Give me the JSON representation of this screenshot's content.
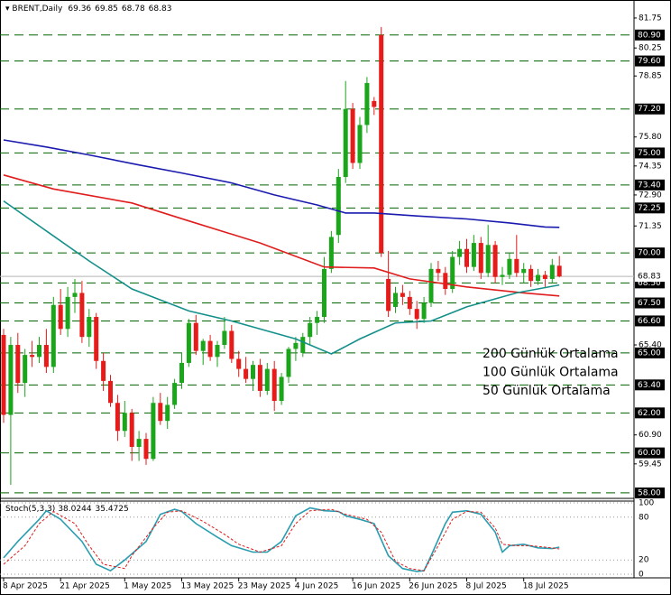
{
  "chart_data": [
    {
      "type": "candlestick",
      "title": "BRENT,Daily",
      "categories": [
        "8 Apr 2025",
        null,
        null,
        null,
        null,
        null,
        null,
        null,
        "21 Apr 2025",
        null,
        null,
        null,
        null,
        null,
        null,
        null,
        null,
        "1 May 2025",
        null,
        null,
        null,
        null,
        null,
        null,
        null,
        "13 May 2025",
        null,
        null,
        null,
        null,
        null,
        null,
        null,
        "23 May 2025",
        null,
        null,
        null,
        null,
        null,
        null,
        null,
        "4 Jun 2025",
        null,
        null,
        null,
        null,
        null,
        null,
        null,
        "16 Jun 2025",
        null,
        null,
        null,
        null,
        null,
        null,
        null,
        "26 Jun 2025",
        null,
        null,
        null,
        null,
        null,
        null,
        null,
        "8 Jul 2025",
        null,
        null,
        null,
        null,
        null,
        null,
        null,
        "18 Jul 2025",
        null,
        null,
        null,
        null,
        null
      ],
      "ohlc": [
        [
          65.9,
          66.2,
          61.5,
          61.9
        ],
        [
          61.9,
          65.8,
          58.4,
          65.4
        ],
        [
          65.4,
          66.0,
          63.0,
          63.5
        ],
        [
          63.5,
          65.2,
          62.8,
          64.9
        ],
        [
          64.9,
          65.6,
          64.3,
          64.8
        ],
        [
          64.8,
          65.8,
          64.5,
          65.4
        ],
        [
          65.4,
          66.2,
          64.0,
          64.3
        ],
        [
          64.3,
          67.8,
          64.0,
          67.4
        ],
        [
          67.4,
          68.2,
          65.9,
          66.2
        ],
        [
          66.2,
          68.3,
          65.8,
          67.8
        ],
        [
          67.8,
          68.7,
          67.0,
          68.0
        ],
        [
          68.0,
          68.6,
          65.5,
          65.8
        ],
        [
          65.8,
          67.2,
          65.3,
          66.8
        ],
        [
          66.8,
          67.0,
          64.2,
          64.6
        ],
        [
          64.6,
          65.0,
          63.1,
          63.6
        ],
        [
          63.6,
          63.9,
          62.3,
          62.5
        ],
        [
          62.5,
          62.9,
          60.6,
          61.1
        ],
        [
          61.1,
          62.6,
          60.8,
          62.0
        ],
        [
          62.0,
          62.2,
          59.6,
          60.3
        ],
        [
          60.3,
          61.1,
          59.6,
          60.7
        ],
        [
          60.7,
          61.0,
          59.4,
          59.7
        ],
        [
          59.7,
          62.8,
          59.6,
          62.5
        ],
        [
          62.5,
          63.0,
          61.4,
          61.6
        ],
        [
          61.6,
          62.8,
          61.2,
          62.4
        ],
        [
          62.4,
          63.7,
          62.2,
          63.5
        ],
        [
          63.5,
          65.0,
          63.2,
          64.5
        ],
        [
          64.5,
          66.7,
          64.3,
          66.5
        ],
        [
          66.5,
          66.9,
          64.9,
          65.1
        ],
        [
          65.1,
          65.7,
          64.4,
          65.6
        ],
        [
          65.6,
          65.9,
          64.6,
          64.8
        ],
        [
          64.8,
          65.6,
          64.3,
          65.4
        ],
        [
          65.4,
          66.8,
          65.2,
          66.1
        ],
        [
          66.1,
          66.4,
          64.5,
          64.7
        ],
        [
          64.7,
          65.1,
          63.8,
          64.2
        ],
        [
          64.2,
          64.8,
          63.5,
          63.7
        ],
        [
          63.7,
          64.6,
          63.1,
          64.4
        ],
        [
          64.4,
          64.7,
          62.8,
          63.1
        ],
        [
          63.1,
          64.5,
          62.9,
          64.2
        ],
        [
          64.2,
          64.6,
          62.1,
          62.6
        ],
        [
          62.6,
          64.0,
          62.4,
          63.8
        ],
        [
          63.8,
          65.3,
          63.5,
          65.2
        ],
        [
          65.2,
          65.8,
          64.6,
          65.5
        ],
        [
          65.0,
          66.0,
          64.8,
          65.8
        ],
        [
          65.8,
          66.8,
          65.4,
          66.5
        ],
        [
          66.5,
          67.1,
          65.9,
          66.8
        ],
        [
          66.8,
          69.8,
          66.5,
          69.2
        ],
        [
          69.2,
          71.1,
          69.0,
          70.8
        ],
        [
          70.9,
          74.2,
          70.5,
          73.8
        ],
        [
          73.8,
          78.6,
          73.5,
          77.2
        ],
        [
          77.2,
          77.5,
          74.2,
          74.5
        ],
        [
          74.5,
          76.8,
          74.2,
          76.4
        ],
        [
          76.4,
          78.8,
          76.0,
          78.5
        ],
        [
          77.6,
          77.8,
          76.9,
          77.3
        ],
        [
          80.9,
          81.3,
          69.8,
          70.0
        ],
        [
          68.7,
          70.1,
          66.8,
          67.1
        ],
        [
          67.3,
          68.3,
          67.0,
          68.0
        ],
        [
          68.0,
          68.4,
          67.4,
          67.8
        ],
        [
          67.8,
          68.1,
          66.9,
          67.2
        ],
        [
          67.2,
          67.6,
          66.2,
          66.7
        ],
        [
          66.7,
          67.8,
          66.5,
          67.5
        ],
        [
          67.5,
          69.5,
          67.3,
          69.2
        ],
        [
          69.2,
          69.6,
          68.6,
          69.0
        ],
        [
          69.0,
          69.3,
          67.9,
          68.2
        ],
        [
          68.2,
          70.1,
          68.0,
          69.8
        ],
        [
          69.8,
          70.6,
          69.4,
          70.2
        ],
        [
          70.2,
          70.7,
          69.0,
          69.3
        ],
        [
          69.3,
          70.9,
          69.1,
          70.5
        ],
        [
          70.5,
          70.8,
          68.7,
          69.0
        ],
        [
          69.0,
          71.4,
          68.8,
          70.4
        ],
        [
          70.4,
          70.6,
          68.5,
          68.8
        ],
        [
          68.8,
          69.3,
          68.4,
          68.9
        ],
        [
          68.9,
          70.0,
          68.7,
          69.7
        ],
        [
          69.7,
          70.9,
          68.8,
          69.0
        ],
        [
          69.0,
          69.5,
          68.5,
          69.2
        ],
        [
          69.2,
          69.4,
          68.3,
          68.6
        ],
        [
          68.6,
          69.2,
          68.4,
          68.9
        ],
        [
          68.9,
          69.1,
          68.3,
          68.7
        ],
        [
          68.7,
          69.7,
          68.5,
          69.4
        ],
        [
          69.36,
          69.85,
          68.78,
          68.83
        ]
      ],
      "up_color": "#1aa51a",
      "down_color": "#e81b1b",
      "series": [
        {
          "name": "200 Günlük Ortalama",
          "color": "#1a1ab0",
          "x": [
            0,
            6,
            12,
            19,
            25,
            32,
            38,
            44,
            48,
            52,
            58,
            65,
            71,
            76,
            78
          ],
          "values": [
            75.65,
            75.3,
            74.9,
            74.4,
            74.0,
            73.5,
            72.9,
            72.4,
            72.0,
            72.0,
            71.85,
            71.7,
            71.5,
            71.3,
            71.28
          ]
        },
        {
          "name": "100 Günlük Ortalama",
          "color": "#e01c1c",
          "x": [
            0,
            7,
            18,
            26,
            36,
            45,
            52,
            57,
            65,
            73,
            78
          ],
          "values": [
            73.9,
            73.2,
            72.5,
            71.6,
            70.5,
            69.3,
            69.25,
            68.7,
            68.3,
            68.0,
            67.85
          ]
        },
        {
          "name": "50 Günlük Ortalama",
          "color": "#14908a",
          "x": [
            0,
            6,
            12,
            18,
            26,
            32,
            41,
            46,
            50,
            55,
            60,
            65,
            72,
            78
          ],
          "values": [
            72.6,
            71.1,
            69.6,
            68.2,
            67.1,
            66.6,
            65.7,
            64.95,
            65.7,
            66.5,
            66.6,
            67.3,
            68.0,
            68.4
          ]
        }
      ],
      "ylim": [
        57.77,
        82.56
      ],
      "yticks": [
        81.75,
        80.25,
        78.85,
        {
          "value": 75.8,
          "label": "75.80"
        },
        74.35,
        {
          "value": 72.9,
          "label": "72.90"
        },
        71.35,
        {
          "value": 65.4,
          "label": "65.40"
        },
        {
          "value": 60.9,
          "label": "60.90"
        },
        59.45
      ],
      "levels": [
        {
          "value": 80.9,
          "label": "80.90"
        },
        {
          "value": 79.6,
          "label": "79.60"
        },
        {
          "value": 77.2,
          "label": "77.20"
        },
        {
          "value": 75,
          "label": "75.00"
        },
        {
          "value": 73.4,
          "label": "73.40"
        },
        72.25,
        {
          "value": 70,
          "label": "70.00"
        },
        {
          "value": 68.5,
          "label": "68.50"
        },
        {
          "value": 67.5,
          "label": "67.50"
        },
        {
          "value": 66.6,
          "label": "66.60"
        },
        {
          "value": 65,
          "label": "65.00"
        },
        {
          "value": 63.4,
          "label": "63.40"
        },
        {
          "value": 62,
          "label": "62.00"
        },
        {
          "value": 60,
          "label": "60.00"
        },
        {
          "value": 58,
          "label": "58.00"
        }
      ],
      "level_color": "#006400"
    },
    {
      "type": "line",
      "title": "Stoch(5,3,3)",
      "series": [
        {
          "name": "%K",
          "color": "#2a9db0",
          "x": [
            0,
            2,
            5,
            6,
            8,
            11,
            13,
            15,
            17,
            20,
            22,
            24,
            25,
            27,
            30,
            32,
            35,
            37,
            39,
            41,
            43,
            45,
            47,
            48,
            50,
            52,
            54,
            56,
            58,
            59,
            60,
            62,
            63,
            65,
            67,
            69,
            70,
            71,
            73,
            75,
            77,
            78
          ],
          "values": [
            23,
            46,
            77,
            89,
            77,
            46,
            14,
            5,
            20,
            46,
            84,
            91,
            88,
            71,
            52,
            40,
            31,
            31,
            46,
            82,
            93,
            89,
            88,
            82,
            77,
            71,
            26,
            8,
            4,
            5,
            26,
            71,
            87,
            89,
            84,
            59,
            31,
            40,
            42,
            37,
            36,
            38.0244
          ]
        },
        {
          "name": "%D",
          "color": "#e01c1c",
          "dashed": true,
          "x": [
            0,
            3,
            5,
            7,
            10,
            12,
            14,
            17,
            18,
            21,
            23,
            25,
            28,
            31,
            33,
            36,
            39,
            41,
            43,
            46,
            48,
            51,
            53,
            55,
            57,
            59,
            61,
            63,
            65,
            67,
            69,
            70,
            72,
            74,
            76,
            78
          ],
          "values": [
            14,
            40,
            71,
            88,
            71,
            40,
            14,
            8,
            26,
            65,
            87,
            89,
            74,
            56,
            42,
            31,
            40,
            71,
            89,
            91,
            84,
            77,
            59,
            18,
            8,
            5,
            40,
            77,
            88,
            87,
            65,
            42,
            40,
            40,
            38,
            35.4725
          ]
        }
      ],
      "ylim": [
        -5,
        102.5
      ],
      "yticks": [
        0,
        20,
        80,
        100
      ],
      "grid": "dotted"
    }
  ]
}
